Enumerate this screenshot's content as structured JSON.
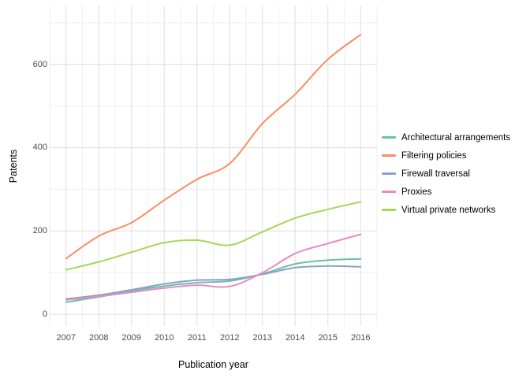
{
  "chart_data": {
    "type": "line",
    "title": "",
    "xlabel": "Publication year",
    "ylabel": "Patents",
    "x": [
      2007,
      2008,
      2009,
      2010,
      2011,
      2012,
      2013,
      2014,
      2015,
      2016
    ],
    "x_tick_labels": [
      "2007",
      "2008",
      "2009",
      "2010",
      "2011",
      "2012",
      "2013",
      "2014",
      "2015",
      "2016"
    ],
    "y_major_ticks": [
      0,
      200,
      400,
      600
    ],
    "y_minor_ticks": [
      100,
      300,
      500,
      700
    ],
    "x_minor_ticks": [
      2006.5,
      2007.5,
      2008.5,
      2009.5,
      2010.5,
      2011.5,
      2012.5,
      2013.5,
      2014.5,
      2015.5,
      2016.5
    ],
    "xlim": [
      2006.5,
      2016.5
    ],
    "ylim": [
      -28,
      741
    ],
    "grid": true,
    "legend_position": "right",
    "series": [
      {
        "name": "Architectural arrangements",
        "color": "#66C2A5",
        "values": [
          29,
          42,
          56,
          68,
          76,
          80,
          97,
          121,
          130,
          133
        ]
      },
      {
        "name": "Filtering policies",
        "color": "#FC8D62",
        "values": [
          134,
          188,
          220,
          274,
          324,
          362,
          458,
          528,
          612,
          671
        ]
      },
      {
        "name": "Firewall traversal",
        "color": "#8DA0CB",
        "values": [
          37,
          46,
          59,
          73,
          82,
          84,
          96,
          112,
          116,
          114
        ]
      },
      {
        "name": "Proxies",
        "color": "#E78AC3",
        "values": [
          35,
          43,
          53,
          63,
          70,
          67,
          100,
          146,
          170,
          192
        ]
      },
      {
        "name": "Virtual private networks",
        "color": "#A6D854",
        "values": [
          107,
          126,
          149,
          172,
          178,
          166,
          198,
          231,
          252,
          270
        ]
      }
    ]
  },
  "style": {
    "background": "#ffffff",
    "grid_major_color": "#e3e3e3",
    "grid_minor_color": "#efefef",
    "tick_label_color": "#4d4d4d",
    "axis_title_color": "#000000",
    "legend_text_color": "#000000"
  }
}
